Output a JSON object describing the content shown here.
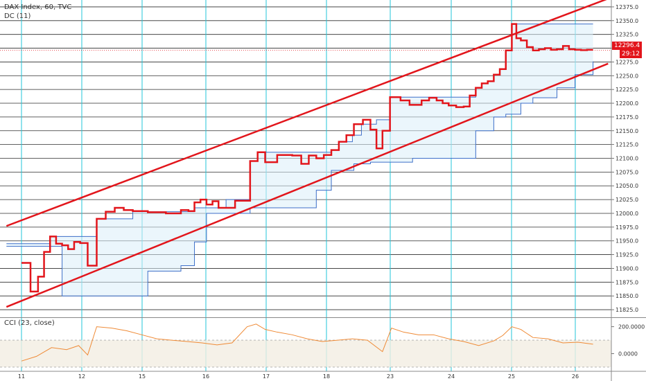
{
  "chart_data": {
    "type": "line",
    "title": "DAX Index, 60, TVC",
    "price_panel": {
      "ylim": [
        11812.5,
        12387.5
      ],
      "yticks": [
        12375.0,
        12350.0,
        12325.0,
        12300.0,
        12275.0,
        12250.0,
        12225.0,
        12200.0,
        12175.0,
        12150.0,
        12125.0,
        12100.0,
        12075.0,
        12050.0,
        12025.0,
        12000.0,
        11975.0,
        11950.0,
        11925.0,
        11900.0,
        11875.0,
        11850.0,
        11825.0
      ],
      "ytick_labels": [
        "12375.0",
        "12350.0",
        "12325.0",
        "",
        "12275.0",
        "12250.0",
        "12225.0",
        "12200.0",
        "12175.0",
        "12150.0",
        "12125.0",
        "12100.0",
        "12075.0",
        "12050.0",
        "12025.0",
        "12000.0",
        "11975.0",
        "11950.0",
        "11925.0",
        "11900.0",
        "11875.0",
        "11850.0",
        "11825.0"
      ],
      "series": [
        {
          "name": "DAX Index",
          "color": "#e2151b",
          "step": true,
          "points": [
            [
              0,
              11910
            ],
            [
              0.3,
              11858
            ],
            [
              0.55,
              11885
            ],
            [
              0.75,
              11930
            ],
            [
              0.95,
              11958
            ],
            [
              1.15,
              11945
            ],
            [
              1.35,
              11942
            ],
            [
              1.55,
              11935
            ],
            [
              1.75,
              11948
            ],
            [
              1.95,
              11946
            ],
            [
              2.2,
              11905
            ],
            [
              2.5,
              11990
            ],
            [
              2.8,
              12003
            ],
            [
              3.1,
              12010
            ],
            [
              3.4,
              12006
            ],
            [
              3.7,
              12004
            ],
            [
              4.2,
              12002
            ],
            [
              4.8,
              12000
            ],
            [
              5.3,
              12006
            ],
            [
              5.55,
              12004
            ],
            [
              5.75,
              12020
            ],
            [
              5.95,
              12025
            ],
            [
              6.15,
              12016
            ],
            [
              6.35,
              12022
            ],
            [
              6.55,
              12010
            ],
            [
              6.8,
              12010
            ],
            [
              7.1,
              12023
            ],
            [
              7.6,
              12095
            ],
            [
              7.85,
              12111
            ],
            [
              8.1,
              12093
            ],
            [
              8.5,
              12106
            ],
            [
              9.0,
              12105
            ],
            [
              9.3,
              12090
            ],
            [
              9.55,
              12105
            ],
            [
              9.8,
              12100
            ],
            [
              10.05,
              12106
            ],
            [
              10.3,
              12115
            ],
            [
              10.55,
              12130
            ],
            [
              10.8,
              12142
            ],
            [
              11.05,
              12162
            ],
            [
              11.35,
              12170
            ],
            [
              11.6,
              12152
            ],
            [
              11.8,
              12118
            ],
            [
              12.0,
              12150
            ],
            [
              12.25,
              12211
            ],
            [
              12.6,
              12205
            ],
            [
              12.9,
              12197
            ],
            [
              13.1,
              12197
            ],
            [
              13.3,
              12205
            ],
            [
              13.55,
              12210
            ],
            [
              13.8,
              12205
            ],
            [
              14.0,
              12200
            ],
            [
              14.2,
              12196
            ],
            [
              14.45,
              12193
            ],
            [
              14.7,
              12194
            ],
            [
              14.9,
              12214
            ],
            [
              15.1,
              12228
            ],
            [
              15.3,
              12236
            ],
            [
              15.5,
              12240
            ],
            [
              15.7,
              12252
            ],
            [
              15.9,
              12262
            ],
            [
              16.1,
              12296
            ],
            [
              16.3,
              12344
            ],
            [
              16.45,
              12318
            ],
            [
              16.6,
              12314
            ],
            [
              16.8,
              12302
            ],
            [
              17.0,
              12296
            ],
            [
              17.2,
              12298
            ],
            [
              17.4,
              12300
            ],
            [
              17.6,
              12297
            ],
            [
              17.8,
              12298
            ],
            [
              18.0,
              12304
            ],
            [
              18.2,
              12298
            ],
            [
              18.4,
              12297
            ],
            [
              18.6,
              12296.4
            ],
            [
              18.8,
              12297
            ],
            [
              19.0,
              12297
            ]
          ]
        },
        {
          "name": "DC (11)",
          "color": "#3c6ec8",
          "step": true,
          "upper_x": [
            -0.5,
            0.75,
            0.95,
            1.15,
            1.35,
            2.5,
            3.7,
            4.2,
            5.75,
            6.8,
            7.1,
            7.6,
            7.85,
            8.1,
            8.5,
            9.0,
            10.05,
            10.3,
            10.55,
            11.0,
            11.3,
            11.8,
            12.0,
            12.25,
            13.0,
            14.45,
            14.9,
            15.1,
            15.3,
            15.5,
            15.7,
            15.9,
            16.1,
            16.3,
            17.5,
            18.2,
            18.9,
            19.0
          ],
          "upper_y": [
            11945,
            11945,
            11958,
            11958,
            11958,
            11990,
            12003,
            12003,
            12010,
            12025,
            12025,
            12095,
            12111,
            12111,
            12111,
            12111,
            12111,
            12115,
            12130,
            12142,
            12162,
            12170,
            12170,
            12211,
            12211,
            12211,
            12211,
            12228,
            12236,
            12240,
            12252,
            12262,
            12296,
            12344,
            12344,
            12344,
            12344,
            12344
          ],
          "lower_x": [
            -0.5,
            1.35,
            2.2,
            3.4,
            4.2,
            5.3,
            5.75,
            6.15,
            6.55,
            7.1,
            7.6,
            8.1,
            8.5,
            9.0,
            9.55,
            9.8,
            10.3,
            11.05,
            11.6,
            12.0,
            12.5,
            13.0,
            14.2,
            14.45,
            15.1,
            15.7,
            16.1,
            16.6,
            17.0,
            17.8,
            18.4,
            19.0
          ],
          "lower_y": [
            11940,
            11850,
            11850,
            11850,
            11895,
            11905,
            11948,
            12000,
            12000,
            12000,
            12010,
            12010,
            12010,
            12010,
            12010,
            12042,
            12078,
            12090,
            12093,
            12093,
            12093,
            12100,
            12100,
            12100,
            12150,
            12175,
            12180,
            12200,
            12210,
            12228,
            12252,
            12276
          ]
        },
        {
          "name": "channel-upper",
          "color": "#e2151b",
          "line": [
            [
              -0.5,
              11977
            ],
            [
              19.5,
              12390
            ]
          ]
        },
        {
          "name": "channel-lower",
          "color": "#e2151b",
          "line": [
            [
              -0.5,
              11830
            ],
            [
              19.5,
              12272
            ]
          ]
        }
      ],
      "last_price": "12296.4",
      "countdown": "29:12"
    },
    "indicator_panel": {
      "title": "CCI (23, close)",
      "ylim": [
        -90,
        260
      ],
      "yticks": [
        200.0,
        0.0
      ],
      "ytick_labels": [
        "200.0000",
        "0.0000"
      ],
      "band": [
        -100,
        100
      ],
      "color": "#ef8a35",
      "values": [
        [
          0,
          -55
        ],
        [
          0.5,
          -20
        ],
        [
          1.0,
          45
        ],
        [
          1.5,
          30
        ],
        [
          1.9,
          60
        ],
        [
          2.2,
          -10
        ],
        [
          2.5,
          200
        ],
        [
          3.0,
          190
        ],
        [
          3.5,
          170
        ],
        [
          4.0,
          140
        ],
        [
          4.5,
          110
        ],
        [
          5.0,
          100
        ],
        [
          5.5,
          90
        ],
        [
          6.0,
          80
        ],
        [
          6.5,
          65
        ],
        [
          7.0,
          80
        ],
        [
          7.5,
          200
        ],
        [
          7.8,
          220
        ],
        [
          8.1,
          180
        ],
        [
          8.5,
          160
        ],
        [
          9.0,
          140
        ],
        [
          9.5,
          110
        ],
        [
          10.0,
          90
        ],
        [
          10.5,
          100
        ],
        [
          11.0,
          110
        ],
        [
          11.5,
          100
        ],
        [
          12.0,
          15
        ],
        [
          12.3,
          190
        ],
        [
          12.7,
          160
        ],
        [
          13.2,
          140
        ],
        [
          13.7,
          140
        ],
        [
          14.2,
          110
        ],
        [
          14.7,
          90
        ],
        [
          15.2,
          60
        ],
        [
          15.7,
          95
        ],
        [
          16.0,
          135
        ],
        [
          16.3,
          200
        ],
        [
          16.6,
          180
        ],
        [
          17.0,
          120
        ],
        [
          17.5,
          110
        ],
        [
          18.0,
          80
        ],
        [
          18.5,
          85
        ],
        [
          19.0,
          70
        ]
      ]
    },
    "xlabels": [
      "11",
      "12",
      "15",
      "16",
      "17",
      "18",
      "23",
      "24",
      "25",
      "26"
    ]
  }
}
